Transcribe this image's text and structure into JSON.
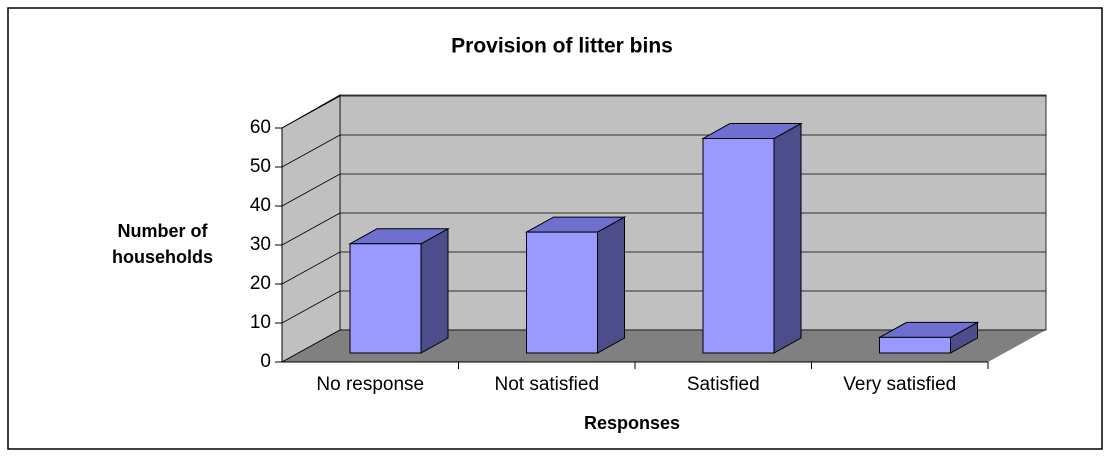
{
  "chart_data": {
    "type": "bar3d",
    "title": "Provision of litter bins",
    "x_label": "Responses",
    "y_label": "Number of households",
    "categories": [
      "No response",
      "Not satisfied",
      "Satisfied",
      "Very satisfied"
    ],
    "values": [
      28,
      31,
      55,
      4
    ],
    "color": "#9999ff",
    "ylim": [
      0,
      60
    ],
    "yticks": [
      0,
      10,
      20,
      30,
      40,
      50,
      60
    ],
    "grid": true
  }
}
